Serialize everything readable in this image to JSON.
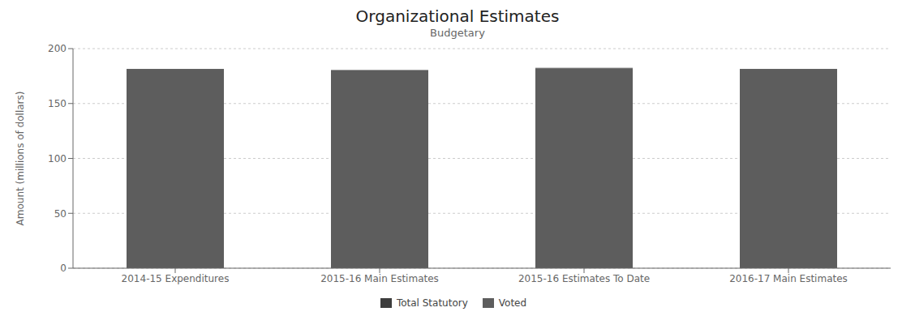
{
  "chart_data": {
    "type": "bar",
    "title": "Organizational Estimates",
    "subtitle": "Budgetary",
    "ylabel": "Amount (millions of dollars)",
    "categories": [
      "2014-15 Expenditures",
      "2015-16 Main Estimates",
      "2015-16 Estimates To Date",
      "2016-17 Main Estimates"
    ],
    "series": [
      {
        "name": "Total Statutory",
        "color": "#3d3d3d",
        "values": [
          0.5,
          0.5,
          0.5,
          0.5
        ]
      },
      {
        "name": "Voted",
        "color": "#5d5d5d",
        "values": [
          181,
          180,
          182,
          181
        ]
      }
    ],
    "stacked": true,
    "ylim": [
      0,
      200
    ],
    "yticks": [
      0,
      50,
      100,
      150,
      200
    ],
    "grid": true,
    "legend": "bottom"
  }
}
